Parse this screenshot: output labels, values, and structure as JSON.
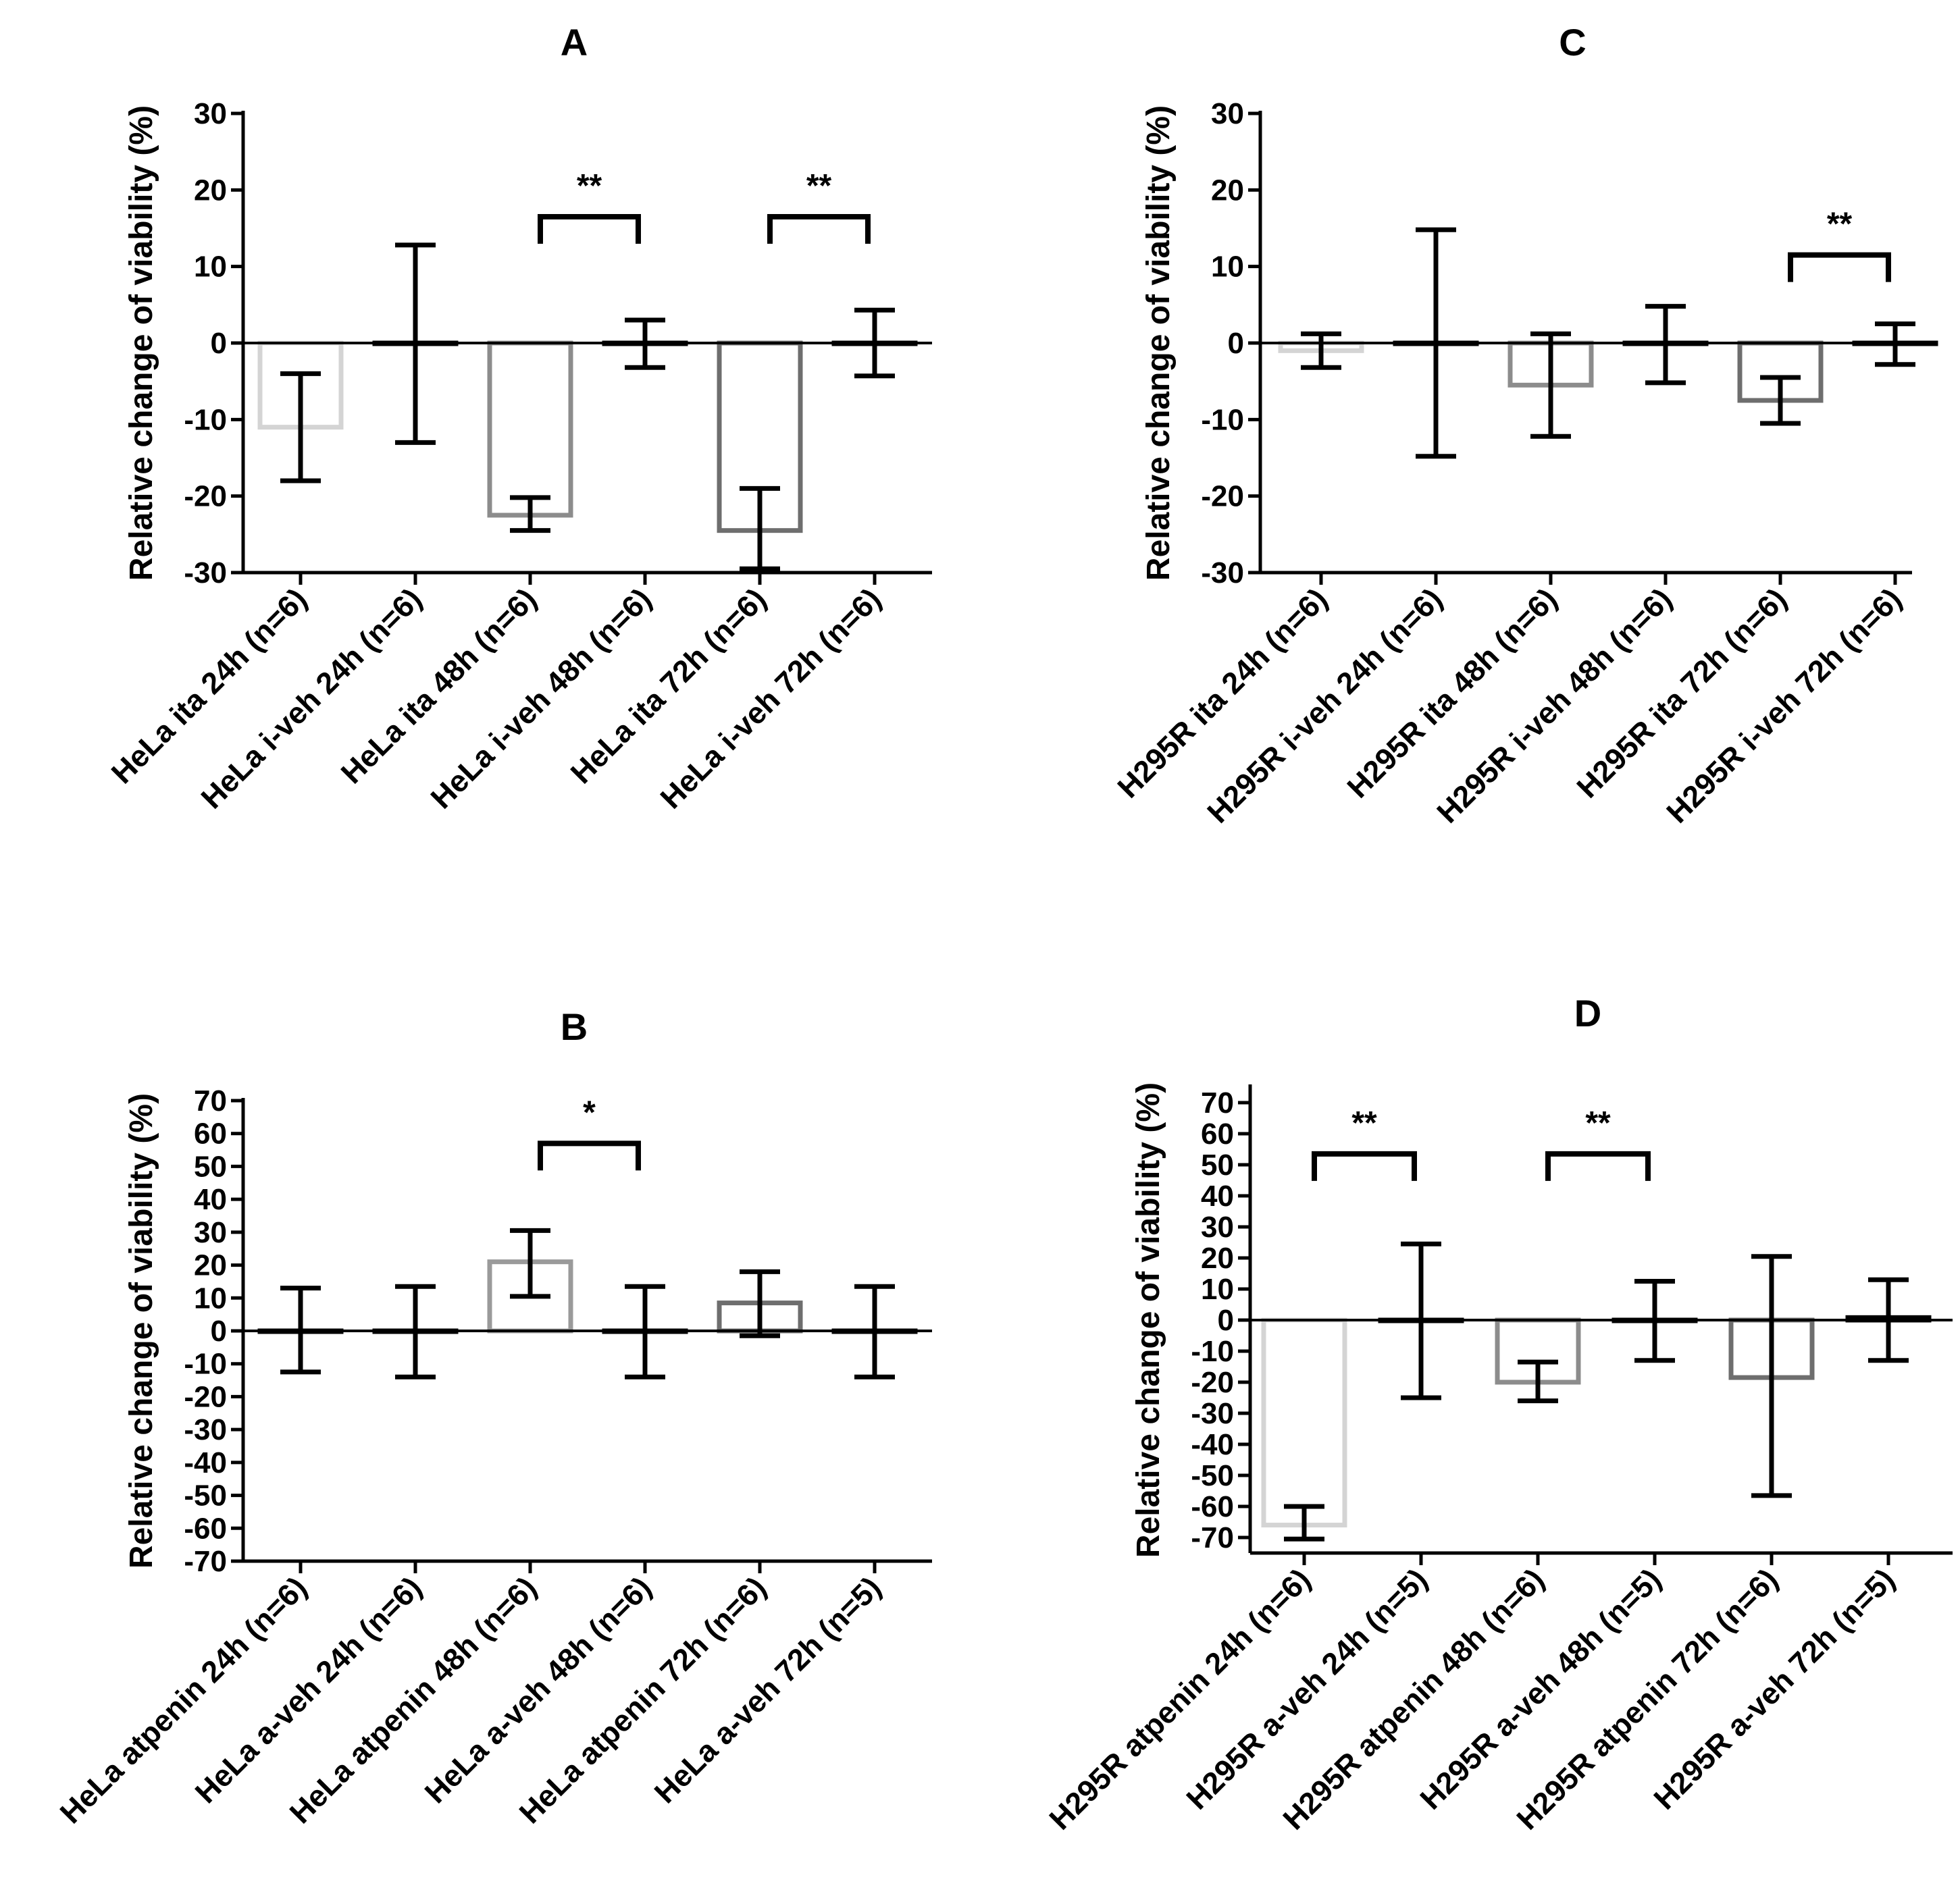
{
  "chart_data": [
    {
      "id": "A",
      "type": "bar",
      "title": "A",
      "ylabel": "Relative change of viability (%)",
      "xlabel": "",
      "ylim": [
        -30,
        30
      ],
      "yticks": [
        30,
        20,
        10,
        0,
        -10,
        -20,
        -30
      ],
      "categories": [
        "HeLa ita 24h (n=6)",
        "HeLa i-veh 24h (n=6)",
        "HeLa ita 48h (n=6)",
        "HeLa i-veh 48h (n=6)",
        "HeLa ita 72h (n=6)",
        "HeLa i-veh 72h (n=6)"
      ],
      "values": [
        -11,
        0,
        -22.5,
        0,
        -24.5,
        0
      ],
      "err_low": [
        -18,
        -13,
        -24.5,
        -3.2,
        -29.5,
        -4.3
      ],
      "err_high": [
        -4,
        12.8,
        -20.2,
        3,
        -19,
        4.3
      ],
      "colors": [
        "#d4d4d4",
        "#000000",
        "#8c8c8c",
        "#000000",
        "#6e6e6e",
        "#000000"
      ],
      "significance": [
        {
          "from": 2,
          "to": 3,
          "label": "**",
          "y": 16.5
        },
        {
          "from": 4,
          "to": 5,
          "label": "**",
          "y": 16.5
        }
      ]
    },
    {
      "id": "B",
      "type": "bar",
      "title": "B",
      "ylabel": "Relative change of viability (%)",
      "xlabel": "",
      "ylim": [
        -70,
        70
      ],
      "yticks": [
        70,
        60,
        50,
        40,
        30,
        20,
        10,
        0,
        -10,
        -20,
        -30,
        -40,
        -50,
        -60,
        -70
      ],
      "categories": [
        "HeLa atpenin 24h (n=6)",
        "HeLa a-veh 24h (n=6)",
        "HeLa atpenin 48h (n=6)",
        "HeLa a-veh 48h (n=6)",
        "HeLa atpenin 72h (n=6)",
        "HeLa a-veh 72h (n=5)"
      ],
      "values": [
        0,
        0,
        21,
        0,
        8.5,
        0
      ],
      "err_low": [
        -12.5,
        -14,
        10.5,
        -14,
        -1.5,
        -14
      ],
      "err_high": [
        13,
        13.5,
        30.5,
        13.5,
        18,
        13.5
      ],
      "colors": [
        "#000000",
        "#000000",
        "#9a9a9a",
        "#000000",
        "#6e6e6e",
        "#000000"
      ],
      "significance": [
        {
          "from": 2,
          "to": 3,
          "label": "*",
          "y": 57
        }
      ]
    },
    {
      "id": "C",
      "type": "bar",
      "title": "C",
      "ylabel": "Relative change of viability (%)",
      "xlabel": "",
      "ylim": [
        -30,
        30
      ],
      "yticks": [
        30,
        20,
        10,
        0,
        -10,
        -20,
        -30
      ],
      "categories": [
        "H295R ita 24h (n=6)",
        "H295R i-veh 24h (n=6)",
        "H295R ita 48h (n=6)",
        "H295R i-veh 48h (n=6)",
        "H295R ita 72h (n=6)",
        "H295R i-veh 72h (n=6)"
      ],
      "values": [
        -1,
        0,
        -5.5,
        0,
        -7.5,
        0
      ],
      "err_low": [
        -3.2,
        -14.8,
        -12.2,
        -5.2,
        -10.5,
        -2.8
      ],
      "err_high": [
        1.2,
        14.8,
        1.2,
        4.8,
        -4.5,
        2.5
      ],
      "colors": [
        "#d4d4d4",
        "#000000",
        "#8c8c8c",
        "#000000",
        "#6e6e6e",
        "#000000"
      ],
      "significance": [
        {
          "from": 4,
          "to": 5,
          "label": "**",
          "y": 11.5
        }
      ]
    },
    {
      "id": "D",
      "type": "bar",
      "title": "D",
      "ylabel": "Relative change of viability (%)",
      "xlabel": "",
      "ylim": [
        -75,
        75
      ],
      "yticks": [
        70,
        60,
        50,
        40,
        30,
        20,
        10,
        0,
        -10,
        -20,
        -30,
        -40,
        -50,
        -60,
        -70
      ],
      "categories": [
        "H295R atpenin 24h (n=6)",
        "H295R a-veh 24h (n=5)",
        "H295R atpenin 48h (n=6)",
        "H295R a-veh 48h (n=5)",
        "H295R atpenin 72h (n=6)",
        "H295R a-veh 72h (n=5)"
      ],
      "values": [
        -66,
        0,
        -20,
        0,
        -18.5,
        0.8
      ],
      "err_low": [
        -70.5,
        -25,
        -26,
        -13,
        -56.5,
        -13
      ],
      "err_high": [
        -60,
        24.5,
        -13.5,
        12.5,
        20.5,
        13
      ],
      "colors": [
        "#d4d4d4",
        "#000000",
        "#8c8c8c",
        "#000000",
        "#6e6e6e",
        "#000000"
      ],
      "significance": [
        {
          "from": 0,
          "to": 1,
          "label": "**",
          "y": 53.5
        },
        {
          "from": 2,
          "to": 3,
          "label": "**",
          "y": 53.5
        }
      ]
    }
  ]
}
